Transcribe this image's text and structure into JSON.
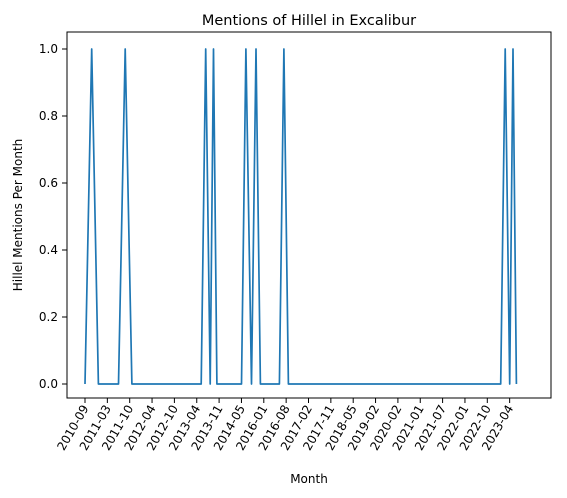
{
  "chart_data": {
    "type": "line",
    "title": "Mentions of Hillel in Excalibur",
    "xlabel": "Month",
    "ylabel": "Hillel Mentions Per Month",
    "ylim": [
      0.0,
      1.0
    ],
    "y_ticks": [
      "0.0",
      "0.2",
      "0.4",
      "0.6",
      "0.8",
      "1.0"
    ],
    "x_ticks": [
      "2010-09",
      "2011-03",
      "2011-10",
      "2012-04",
      "2012-10",
      "2013-04",
      "2013-11",
      "2014-05",
      "2016-01",
      "2016-08",
      "2017-02",
      "2017-11",
      "2018-05",
      "2019-02",
      "2020-02",
      "2021-01",
      "2021-07",
      "2022-01",
      "2022-10",
      "2023-04"
    ],
    "grid": false,
    "legend": "none",
    "line_color": "#1f77b4",
    "series": [
      {
        "x_index": [
          0,
          0.3,
          0.6,
          1.5,
          1.8,
          2.1,
          5.2,
          5.4,
          5.6,
          5.75,
          5.9,
          7.0,
          7.2,
          7.45,
          7.65,
          7.85,
          8.7,
          8.9,
          9.1,
          18.6,
          18.8,
          19.0,
          19.15,
          19.3
        ],
        "values": [
          0,
          1,
          0,
          0,
          1,
          0,
          0,
          1,
          0,
          1,
          0,
          0,
          1,
          0,
          1,
          0,
          0,
          1,
          0,
          0,
          1,
          0,
          1,
          0
        ]
      }
    ]
  }
}
